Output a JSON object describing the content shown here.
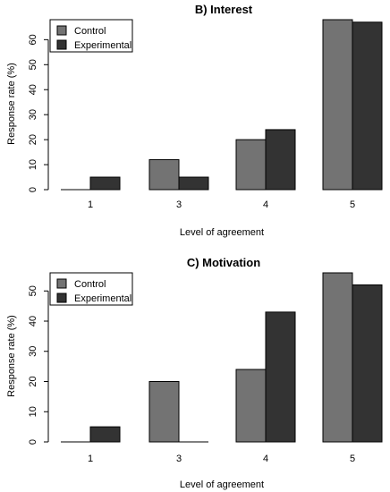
{
  "chart_data": [
    {
      "type": "bar",
      "title": "B) Interest",
      "xlabel": "Level of agreement",
      "ylabel": "Response rate (%)",
      "categories": [
        "1",
        "3",
        "4",
        "5"
      ],
      "ylim": [
        0,
        68
      ],
      "yticks": [
        "0",
        "10",
        "20",
        "30",
        "40",
        "50",
        "60"
      ],
      "legend": {
        "position": "top-left"
      },
      "series": [
        {
          "name": "Control",
          "color": "#737373",
          "values": [
            0,
            12,
            20,
            68
          ]
        },
        {
          "name": "Experimental",
          "color": "#333333",
          "values": [
            5,
            5,
            24,
            67
          ]
        }
      ],
      "grid": false
    },
    {
      "type": "bar",
      "title": "C) Motivation",
      "xlabel": "Level of agreement",
      "ylabel": "Response rate (%)",
      "categories": [
        "1",
        "3",
        "4",
        "5"
      ],
      "ylim": [
        0,
        56
      ],
      "yticks": [
        "0",
        "10",
        "20",
        "30",
        "40",
        "50"
      ],
      "legend": {
        "position": "top-left"
      },
      "series": [
        {
          "name": "Control",
          "color": "#737373",
          "values": [
            0,
            20,
            24,
            56
          ]
        },
        {
          "name": "Experimental",
          "color": "#333333",
          "values": [
            5,
            0,
            43,
            52
          ]
        }
      ],
      "grid": false
    }
  ]
}
